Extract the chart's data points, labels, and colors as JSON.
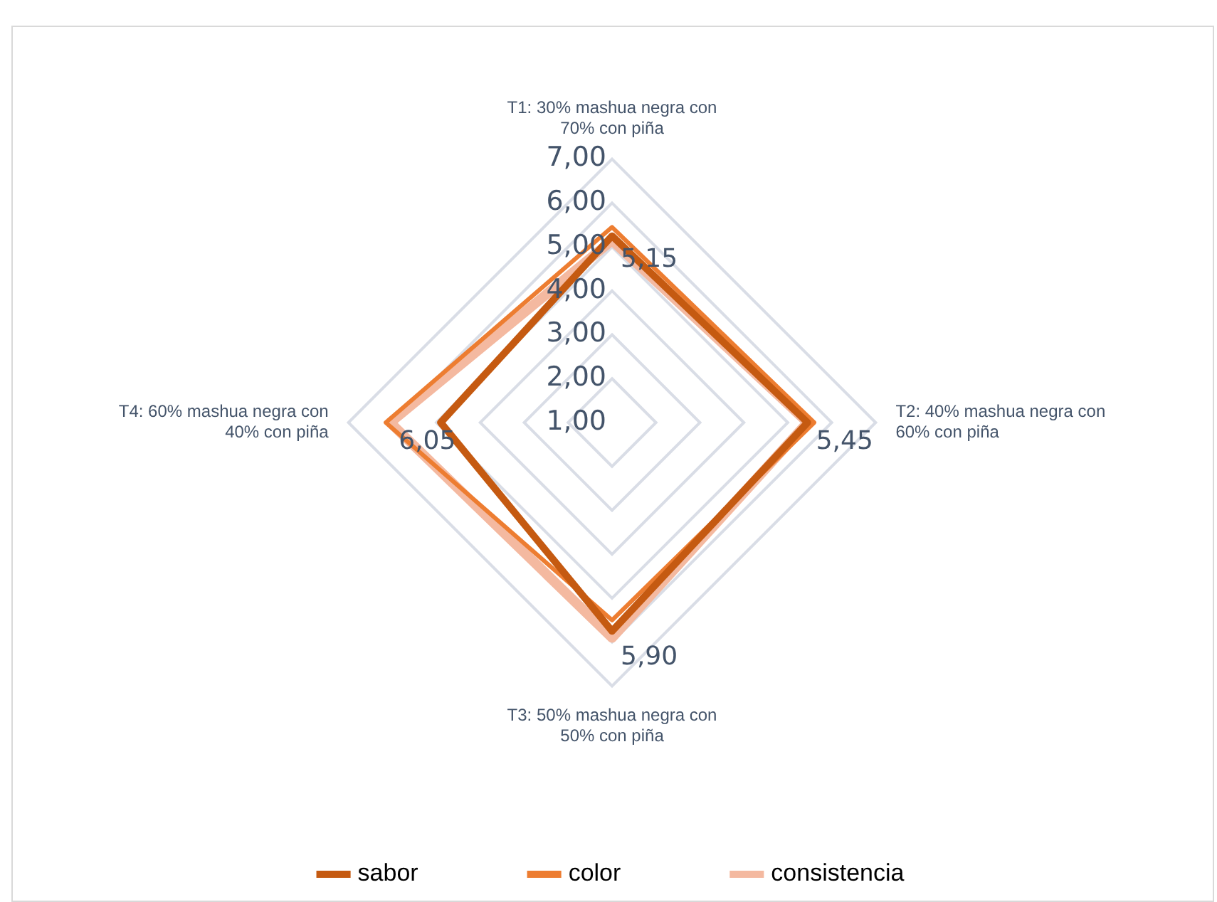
{
  "chart_data": {
    "type": "radar",
    "categories": [
      "T1: 30% mashua negra con 70% con piña",
      "T2: 40% mashua negra con 60% con piña",
      "T3: 50% mashua negra con 50% con piña",
      "T4: 60% mashua negra con 40% con piña"
    ],
    "series": [
      {
        "name": "sabor",
        "color": "#c55a11",
        "values": [
          5.25,
          5.45,
          5.75,
          4.9
        ]
      },
      {
        "name": "color",
        "color": "#ed7d31",
        "values": [
          5.45,
          5.6,
          5.5,
          6.15
        ]
      },
      {
        "name": "consistencia",
        "color": "#f4b9a0",
        "values": [
          5.15,
          5.45,
          5.9,
          6.05
        ],
        "value_labels": [
          "5,15",
          "5,45",
          "5,90",
          "6,05"
        ]
      }
    ],
    "ylim": [
      1,
      7
    ],
    "yticks": [
      {
        "value": 1,
        "label": "1,00"
      },
      {
        "value": 2,
        "label": "2,00"
      },
      {
        "value": 3,
        "label": "3,00"
      },
      {
        "value": 4,
        "label": "4,00"
      },
      {
        "value": 5,
        "label": "5,00"
      },
      {
        "value": 6,
        "label": "6,00"
      },
      {
        "value": 7,
        "label": "7,00"
      }
    ],
    "grid": true,
    "legend": "bottom",
    "marker": "none"
  }
}
